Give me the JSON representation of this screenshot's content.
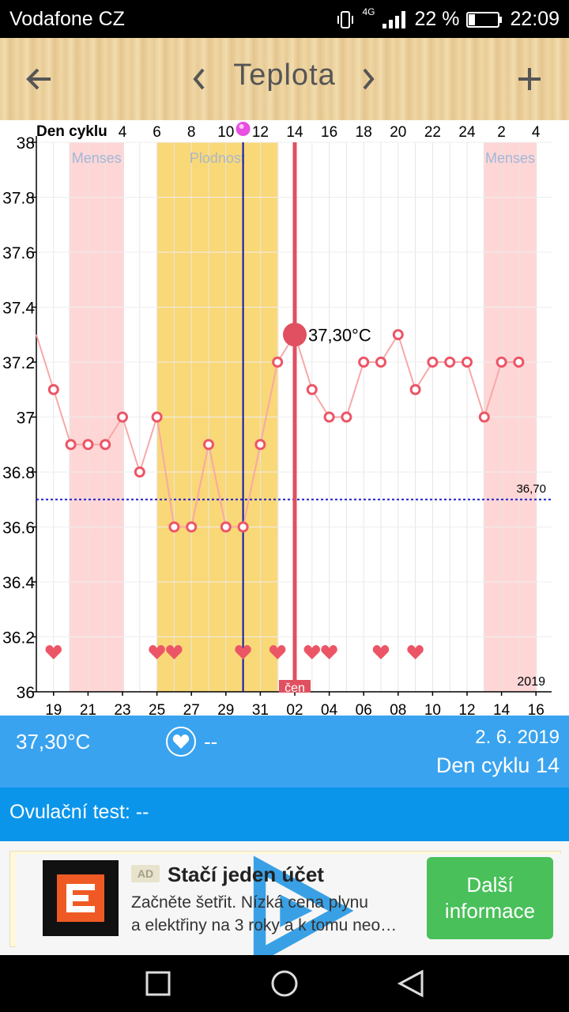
{
  "status_bar": {
    "carrier": "Vodafone CZ",
    "network": "4G",
    "battery": "22 %",
    "time": "22:09"
  },
  "toolbar": {
    "title": "Teplota"
  },
  "chart_data": {
    "type": "line",
    "ylim": [
      36,
      38
    ],
    "yticks": [
      "36",
      "36.2",
      "36.4",
      "36.6",
      "36.8",
      "37",
      "37.2",
      "37.4",
      "37.6",
      "37.8",
      "38"
    ],
    "top_axis_label": "Den cyklu",
    "top_ticks": [
      "4",
      "6",
      "8",
      "10",
      "12",
      "14",
      "16",
      "18",
      "20",
      "22",
      "24",
      "2",
      "4"
    ],
    "bottom_ticks": [
      "19",
      "21",
      "23",
      "25",
      "27",
      "29",
      "31",
      "02",
      "04",
      "06",
      "08",
      "10",
      "12",
      "14",
      "16"
    ],
    "temps": [
      37.3,
      37.1,
      36.9,
      36.9,
      36.9,
      37.0,
      36.8,
      37.0,
      36.6,
      36.6,
      36.9,
      36.6,
      36.6,
      36.9,
      37.2,
      37.3,
      37.1,
      37.0,
      37.0,
      37.2,
      37.2,
      37.3,
      37.1,
      37.2,
      37.2,
      37.2,
      37.0,
      37.2,
      37.2
    ],
    "hearts": [
      1,
      7,
      8,
      12,
      14,
      16,
      17,
      20,
      22
    ],
    "menses_label": "Menses",
    "fertility_label": "Plodnost",
    "reference_value": 36.7,
    "reference_label": "36,70",
    "selected_index": 15,
    "selected_label": "37,30°C",
    "month_label": "čen",
    "year_label": "2019",
    "colors": {
      "menses": "#ffd6d6",
      "fertility": "#f9d877",
      "line": "#f7a8a8",
      "point": "#ec5566",
      "selected": "#e05060",
      "reference": "#1f1fcc",
      "today": "#0c18a8"
    }
  },
  "info": {
    "temperature": "37,30°C",
    "heart_value": "--",
    "date": "2. 6. 2019",
    "cycle_day": "Den cyklu 14"
  },
  "ovulation": {
    "label": "Ovulační test: --"
  },
  "ad": {
    "badge": "AD",
    "headline": "Stačí jeden účet",
    "line1": "Začněte šetřit. Nízká cena plynu",
    "line2": "a elektřiny na 3 roky a k tomu neo…",
    "cta_line1": "Další",
    "cta_line2": "informace"
  }
}
